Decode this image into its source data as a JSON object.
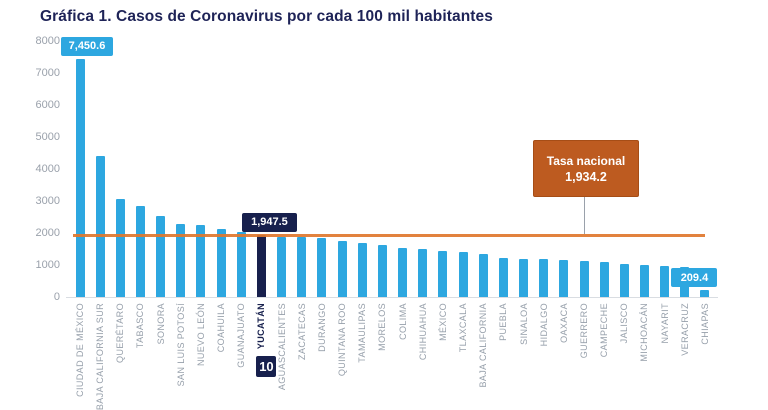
{
  "title": "Gráfica 1. Casos de Coronavirus por cada 100 mil habitantes",
  "chart_data": {
    "type": "bar",
    "title": "Gráfica 1. Casos de Coronavirus por cada 100 mil habitantes",
    "categories": [
      "CIUDAD DE MÉXICO",
      "BAJA CALIFORNIA SUR",
      "QUERÉTARO",
      "TABASCO",
      "SONORA",
      "SAN LUIS POTOSÍ",
      "NUEVO LEÓN",
      "COAHUILA",
      "GUANAJUATO",
      "YUCATÁN",
      "AGUASCALIENTES",
      "ZACATECAS",
      "DURANGO",
      "QUINTANA ROO",
      "TAMAULIPAS",
      "MORELOS",
      "COLIMA",
      "CHIHUAHUA",
      "MÉXICO",
      "TLAXCALA",
      "BAJA CALIFORNIA",
      "PUEBLA",
      "SINALOA",
      "HIDALGO",
      "OAXACA",
      "GUERRERO",
      "CAMPECHE",
      "JALISCO",
      "MICHOACÁN",
      "NAYARIT",
      "VERACRUZ",
      "CHIAPAS"
    ],
    "values": [
      7450.6,
      4420,
      3050,
      2840,
      2530,
      2290,
      2260,
      2120,
      2020,
      1947.5,
      1890,
      1860,
      1830,
      1760,
      1700,
      1630,
      1540,
      1490,
      1450,
      1410,
      1340,
      1230,
      1200,
      1180,
      1150,
      1110,
      1080,
      1030,
      990,
      955,
      930,
      209.4
    ],
    "ylim": [
      0,
      8000
    ],
    "y_ticks": [
      0,
      1000,
      2000,
      3000,
      4000,
      5000,
      6000,
      7000,
      8000
    ],
    "grid": false,
    "legend": false,
    "highlight_index": 9,
    "rank_badge": "10",
    "value_labels": [
      {
        "index": 0,
        "text": "7,450.6",
        "variant": "blue"
      },
      {
        "index": 9,
        "text": "1,947.5",
        "variant": "navy"
      },
      {
        "index": 31,
        "text": "209.4",
        "variant": "blue"
      }
    ],
    "reference_line": {
      "value": 1934.2,
      "label_line1": "Tasa nacional",
      "label_line2": "1,934.2"
    },
    "colors": {
      "bar": "#2da7e0",
      "highlight_bar": "#17204d",
      "reference_line": "#e0772e",
      "reference_box": "#bd5b20",
      "title_text": "#1e2357",
      "axis_text": "#97a0ab"
    }
  }
}
